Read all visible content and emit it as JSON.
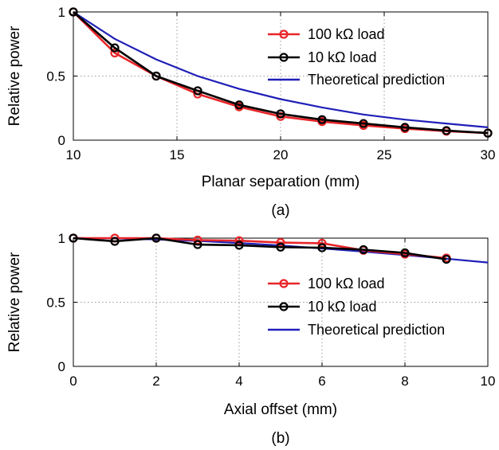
{
  "chart_data": [
    {
      "id": "a",
      "type": "line",
      "caption": "(a)",
      "xlabel": "Planar separation (mm)",
      "ylabel": "Relative power",
      "xlim": [
        10,
        30
      ],
      "ylim": [
        0,
        1
      ],
      "xticks": [
        "10",
        "15",
        "20",
        "25",
        "30"
      ],
      "yticks": [
        "0",
        "0.5",
        "1"
      ],
      "grid": true,
      "legend_position": "top-right",
      "series": [
        {
          "name": "100 kΩ load",
          "color": "#e8262a",
          "marker": "circle",
          "x": [
            10,
            12,
            14,
            16,
            18,
            20,
            22,
            24,
            26,
            28,
            30
          ],
          "y": [
            1.0,
            0.68,
            0.5,
            0.36,
            0.26,
            0.185,
            0.145,
            0.115,
            0.09,
            0.07,
            0.055
          ]
        },
        {
          "name": "10 kΩ load",
          "color": "#000000",
          "marker": "circle",
          "x": [
            10,
            12,
            14,
            16,
            18,
            20,
            22,
            24,
            26,
            28,
            30
          ],
          "y": [
            1.0,
            0.72,
            0.5,
            0.385,
            0.275,
            0.205,
            0.16,
            0.13,
            0.1,
            0.075,
            0.055
          ]
        },
        {
          "name": "Theoretical prediction",
          "color": "#1f1fb8",
          "marker": "none",
          "x": [
            10,
            12,
            14,
            16,
            18,
            20,
            22,
            24,
            26,
            28,
            30
          ],
          "y": [
            1.0,
            0.79,
            0.63,
            0.5,
            0.4,
            0.32,
            0.255,
            0.2,
            0.16,
            0.13,
            0.1
          ]
        }
      ]
    },
    {
      "id": "b",
      "type": "line",
      "caption": "(b)",
      "xlabel": "Axial offset (mm)",
      "ylabel": "Relative power",
      "xlim": [
        0,
        10
      ],
      "ylim": [
        0,
        1
      ],
      "xticks": [
        "0",
        "2",
        "4",
        "6",
        "8",
        "10"
      ],
      "yticks": [
        "0",
        "0.5",
        "1"
      ],
      "grid": true,
      "legend_position": "center-right",
      "series": [
        {
          "name": "100 kΩ load",
          "color": "#e8262a",
          "marker": "circle",
          "x": [
            0,
            1,
            2,
            3,
            4,
            5,
            6,
            7,
            8,
            9
          ],
          "y": [
            1.0,
            1.0,
            1.0,
            0.985,
            0.98,
            0.965,
            0.96,
            0.905,
            0.875,
            0.845
          ]
        },
        {
          "name": "10 kΩ load",
          "color": "#000000",
          "marker": "circle",
          "x": [
            0,
            1,
            2,
            3,
            4,
            5,
            6,
            7,
            8,
            9
          ],
          "y": [
            1.0,
            0.975,
            1.0,
            0.95,
            0.945,
            0.93,
            0.925,
            0.91,
            0.885,
            0.835
          ]
        },
        {
          "name": "Theoretical prediction",
          "color": "#1f1fb8",
          "marker": "none",
          "x": [
            0,
            1,
            2,
            3,
            4,
            5,
            6,
            7,
            8,
            9,
            10
          ],
          "y": [
            1.0,
            0.998,
            0.99,
            0.978,
            0.962,
            0.943,
            0.92,
            0.895,
            0.868,
            0.84,
            0.81
          ]
        }
      ]
    }
  ]
}
